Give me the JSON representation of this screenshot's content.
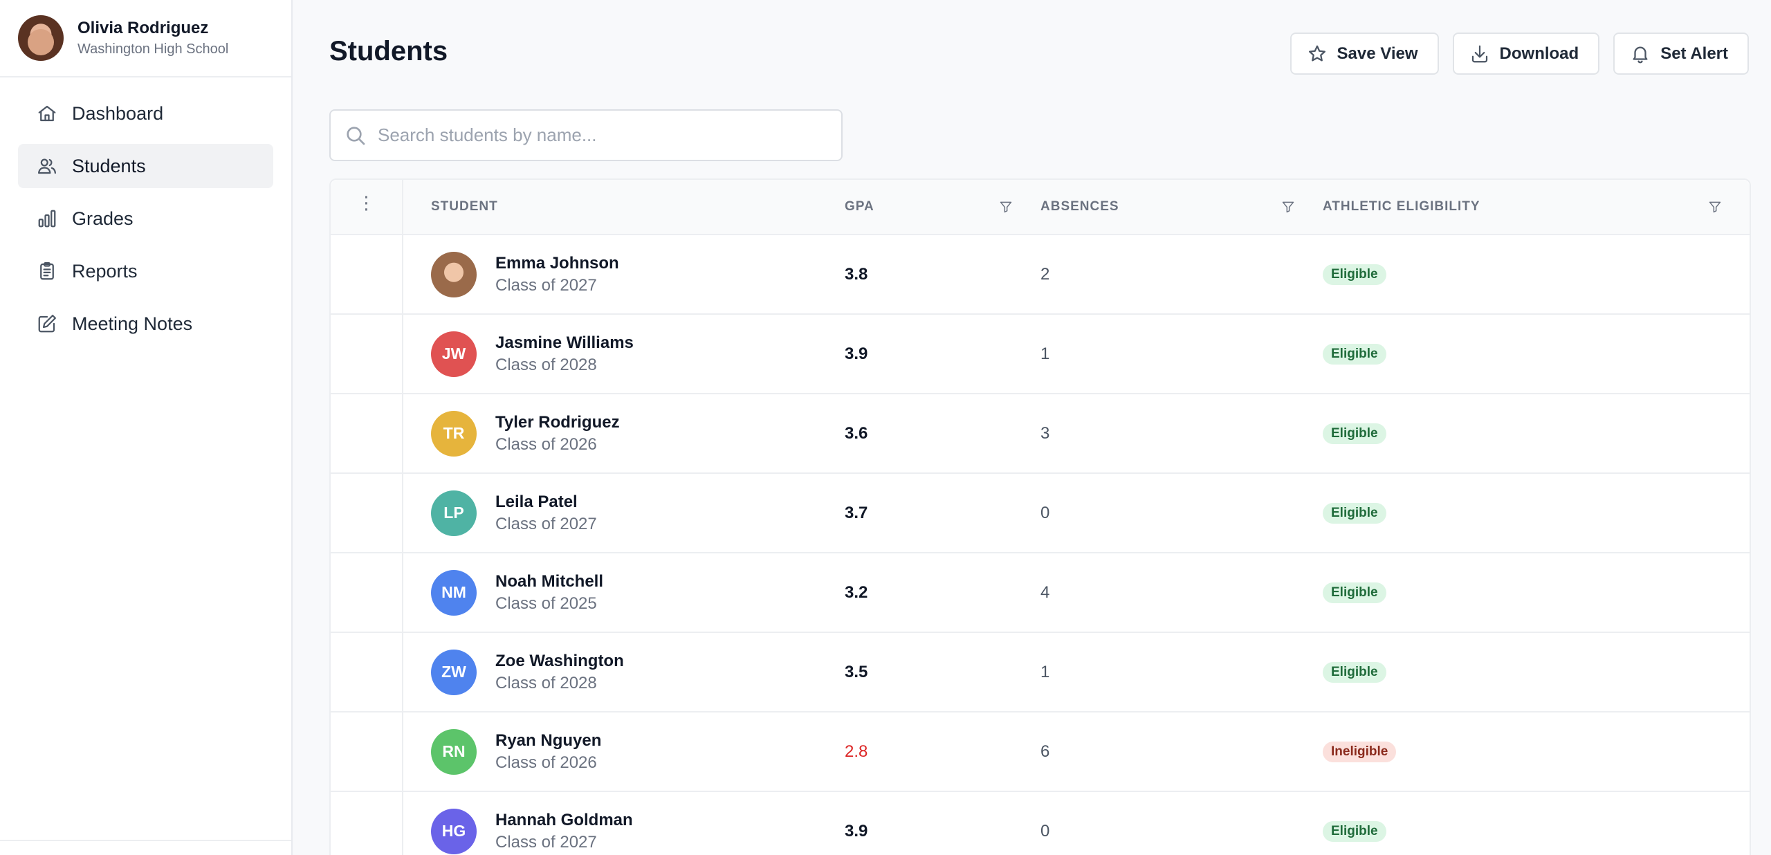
{
  "user": {
    "name": "Olivia Rodriguez",
    "school": "Washington High School"
  },
  "nav": {
    "items": [
      {
        "label": "Dashboard",
        "icon": "home-icon",
        "active": false
      },
      {
        "label": "Students",
        "icon": "users-icon",
        "active": true
      },
      {
        "label": "Grades",
        "icon": "bar-chart-icon",
        "active": false
      },
      {
        "label": "Reports",
        "icon": "clipboard-icon",
        "active": false
      },
      {
        "label": "Meeting Notes",
        "icon": "edit-icon",
        "active": false
      }
    ]
  },
  "header": {
    "title": "Students",
    "actions": {
      "save_view": "Save View",
      "download": "Download",
      "set_alert": "Set Alert"
    }
  },
  "search": {
    "placeholder": "Search students by name...",
    "value": ""
  },
  "table": {
    "columns": {
      "student": "STUDENT",
      "gpa": "GPA",
      "absences": "ABSENCES",
      "eligibility": "ATHLETIC ELIGIBILITY"
    },
    "rows": [
      {
        "name": "Emma Johnson",
        "class": "Class of 2027",
        "initials": "",
        "color": "",
        "gpa": "3.8",
        "absences": "2",
        "eligibility": "Eligible",
        "status": "eligible"
      },
      {
        "name": "Jasmine Williams",
        "class": "Class of 2028",
        "initials": "JW",
        "color": "#e05252",
        "gpa": "3.9",
        "absences": "1",
        "eligibility": "Eligible",
        "status": "eligible"
      },
      {
        "name": "Tyler Rodriguez",
        "class": "Class of 2026",
        "initials": "TR",
        "color": "#e6b43c",
        "gpa": "3.6",
        "absences": "3",
        "eligibility": "Eligible",
        "status": "eligible"
      },
      {
        "name": "Leila Patel",
        "class": "Class of 2027",
        "initials": "LP",
        "color": "#4fb3a4",
        "gpa": "3.7",
        "absences": "0",
        "eligibility": "Eligible",
        "status": "eligible"
      },
      {
        "name": "Noah Mitchell",
        "class": "Class of 2025",
        "initials": "NM",
        "color": "#4f83ee",
        "gpa": "3.2",
        "absences": "4",
        "eligibility": "Eligible",
        "status": "eligible"
      },
      {
        "name": "Zoe Washington",
        "class": "Class of 2028",
        "initials": "ZW",
        "color": "#4f83ee",
        "gpa": "3.5",
        "absences": "1",
        "eligibility": "Eligible",
        "status": "eligible"
      },
      {
        "name": "Ryan Nguyen",
        "class": "Class of 2026",
        "initials": "RN",
        "color": "#5cc46a",
        "gpa": "2.8",
        "absences": "6",
        "eligibility": "Ineligible",
        "status": "ineligible"
      },
      {
        "name": "Hannah Goldman",
        "class": "Class of 2027",
        "initials": "HG",
        "color": "#6a63e8",
        "gpa": "3.9",
        "absences": "0",
        "eligibility": "Eligible",
        "status": "eligible"
      }
    ]
  }
}
